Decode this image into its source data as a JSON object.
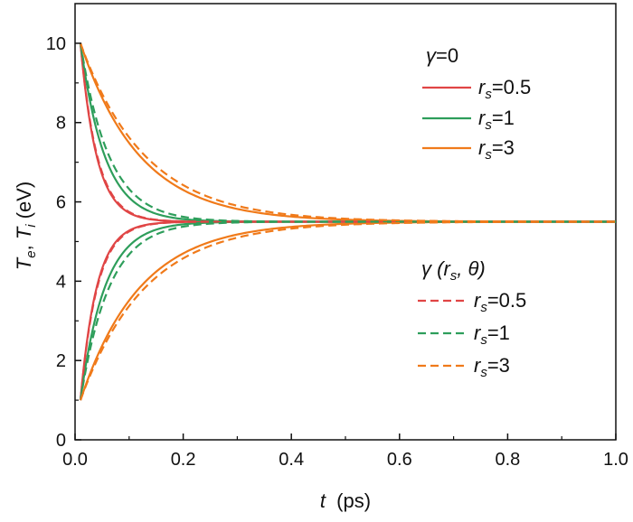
{
  "chart_data": {
    "type": "line",
    "title": "",
    "xlabel": {
      "var": "t",
      "unit": "(ps)"
    },
    "ylabel": {
      "var1": "T",
      "sub1": "e",
      "var2": "T",
      "sub2": "i",
      "unit": "(eV)"
    },
    "xlim": [
      0.0,
      1.0
    ],
    "ylim": [
      0,
      11
    ],
    "xticks": [
      0.0,
      0.2,
      0.4,
      0.6,
      0.8,
      1.0
    ],
    "xtick_labels": [
      "0.0",
      "0.2",
      "0.4",
      "0.6",
      "0.8",
      "1.0"
    ],
    "yticks": [
      0,
      2,
      4,
      6,
      8,
      10
    ],
    "ytick_labels": [
      "0",
      "2",
      "4",
      "6",
      "8",
      "10"
    ],
    "grid": false,
    "legend": [
      {
        "title": {
          "symbol": "γ",
          "text": "=0"
        },
        "placement": "top-right",
        "entries": [
          {
            "prefix": "r",
            "sub": "s",
            "value": "=0.5",
            "color": "#e04545",
            "dash": "solid"
          },
          {
            "prefix": "r",
            "sub": "s",
            "value": "=1",
            "color": "#2e9e5b",
            "dash": "solid"
          },
          {
            "prefix": "r",
            "sub": "s",
            "value": "=3",
            "color": "#f07a1a",
            "dash": "solid"
          }
        ]
      },
      {
        "title": {
          "symbol": "γ",
          "text": " (r",
          "sub": "s",
          "text2": ", θ)"
        },
        "placement": "bottom-right",
        "entries": [
          {
            "prefix": "r",
            "sub": "s",
            "value": "=0.5",
            "color": "#e04545",
            "dash": "dashed"
          },
          {
            "prefix": "r",
            "sub": "s",
            "value": "=1",
            "color": "#2e9e5b",
            "dash": "dashed"
          },
          {
            "prefix": "r",
            "sub": "s",
            "value": "=3",
            "color": "#f07a1a",
            "dash": "dashed"
          }
        ]
      }
    ],
    "curves": {
      "t_start": 0.01,
      "initial_Te": 10,
      "initial_Ti": 1,
      "equilibrium": 5.5,
      "series": [
        {
          "name": "r_s=0.5, γ=0",
          "rs": 0.5,
          "tau_ps": 0.03,
          "color": "#e04545",
          "dash": "solid"
        },
        {
          "name": "r_s=1, γ=0",
          "rs": 1,
          "tau_ps": 0.045,
          "color": "#2e9e5b",
          "dash": "solid"
        },
        {
          "name": "r_s=3, γ=0",
          "rs": 3,
          "tau_ps": 0.11,
          "color": "#f07a1a",
          "dash": "solid"
        },
        {
          "name": "r_s=0.5, γ(r_s,θ)",
          "rs": 0.5,
          "tau_ps": 0.031,
          "color": "#e04545",
          "dash": "dashed"
        },
        {
          "name": "r_s=1, γ(r_s,θ)",
          "rs": 1,
          "tau_ps": 0.053,
          "color": "#2e9e5b",
          "dash": "dashed"
        },
        {
          "name": "r_s=3, γ(r_s,θ)",
          "rs": 3,
          "tau_ps": 0.12,
          "color": "#f07a1a",
          "dash": "dashed"
        }
      ]
    }
  }
}
